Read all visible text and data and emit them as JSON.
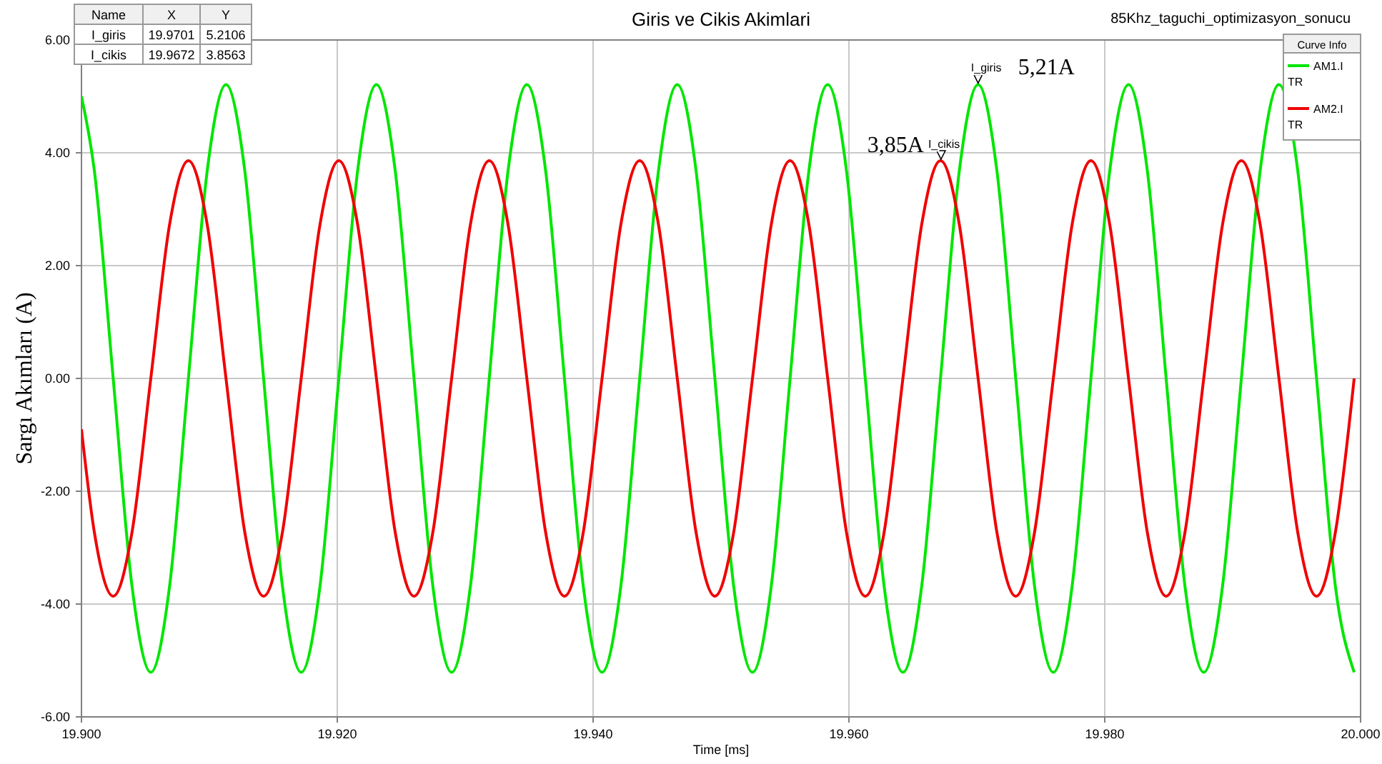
{
  "chart_data": {
    "type": "line",
    "title": "Giris ve Cikis Akimlari",
    "xlabel": "Time [ms]",
    "ylabel": "Sargı Akımları (A)",
    "legend_title": "Curve Info",
    "legend": "top right",
    "grid": true,
    "marker": "none",
    "line_style": "solid",
    "xlim": [
      19.9,
      20.0
    ],
    "xticks": [
      {
        "value": 19.9,
        "label": "19.900"
      },
      {
        "value": 19.92,
        "label": "19.920"
      },
      {
        "value": 19.94,
        "label": "19.940"
      },
      {
        "value": 19.96,
        "label": "19.960"
      },
      {
        "value": 19.98,
        "label": "19.980"
      },
      {
        "value": 20.0,
        "label": "20.000"
      }
    ],
    "ylim": [
      -6,
      6
    ],
    "yticks": [
      {
        "value": -6,
        "label": "-6.00"
      },
      {
        "value": -4,
        "label": "-4.00"
      },
      {
        "value": -2,
        "label": "-2.00"
      },
      {
        "value": 0,
        "label": "0.00"
      },
      {
        "value": 2,
        "label": "2.00"
      },
      {
        "value": 4,
        "label": "4.00"
      },
      {
        "value": 6,
        "label": "6.00"
      }
    ],
    "x": [
      19.9,
      19.90101,
      19.90248,
      19.90395,
      19.90542,
      19.90689,
      19.90836,
      19.90983,
      19.9113,
      19.91277,
      19.91424,
      19.91571,
      19.91718,
      19.91865,
      19.92012,
      19.92159,
      19.92306,
      19.92453,
      19.926,
      19.92747,
      19.92894,
      19.93041,
      19.93188,
      19.93335,
      19.93482,
      19.93629,
      19.93776,
      19.93923,
      19.9407,
      19.94217,
      19.94364,
      19.94511,
      19.94658,
      19.94805,
      19.94952,
      19.95099,
      19.95246,
      19.95393,
      19.9554,
      19.95687,
      19.95834,
      19.95981,
      19.96128,
      19.96275,
      19.96422,
      19.96569,
      19.96716,
      19.96863,
      19.9701,
      19.97157,
      19.97304,
      19.97451,
      19.97598,
      19.97745,
      19.97892,
      19.98039,
      19.98186,
      19.98333,
      19.9848,
      19.98627,
      19.98774,
      19.98921,
      19.99068,
      19.99215,
      19.99362,
      19.99509,
      19.99656,
      19.99803,
      19.9995
    ],
    "series": [
      {
        "name": "AM1.I",
        "color": "#00e600",
        "values": [
          5.0,
          3.68,
          0,
          -3.68,
          -5.21,
          -3.68,
          0,
          3.68,
          5.21,
          3.68,
          0,
          -3.68,
          -5.21,
          -3.68,
          0,
          3.68,
          5.21,
          3.68,
          0,
          -3.68,
          -5.21,
          -3.68,
          0,
          3.68,
          5.21,
          3.68,
          0,
          -3.68,
          -5.21,
          -3.68,
          0,
          3.68,
          5.21,
          3.68,
          0,
          -3.68,
          -5.21,
          -3.68,
          0,
          3.68,
          5.21,
          3.68,
          0,
          -3.68,
          -5.21,
          -3.68,
          0,
          3.68,
          5.21,
          3.68,
          0,
          -3.68,
          -5.21,
          -3.68,
          0,
          3.68,
          5.21,
          3.68,
          0,
          -3.68,
          -5.21,
          -3.68,
          0,
          3.68,
          5.21,
          3.68,
          0,
          -3.68,
          -5.21
        ]
      },
      {
        "name": "AM2.I",
        "color": "#f00000",
        "values": [
          -0.9,
          -2.73,
          -3.86,
          -2.73,
          0,
          2.73,
          3.86,
          2.73,
          0,
          -2.73,
          -3.86,
          -2.73,
          0,
          2.73,
          3.86,
          2.73,
          0,
          -2.73,
          -3.86,
          -2.73,
          0,
          2.73,
          3.86,
          2.73,
          0,
          -2.73,
          -3.86,
          -2.73,
          0,
          2.73,
          3.86,
          2.73,
          0,
          -2.73,
          -3.86,
          -2.73,
          0,
          2.73,
          3.86,
          2.73,
          0,
          -2.73,
          -3.86,
          -2.73,
          0,
          2.73,
          3.86,
          2.73,
          0,
          -2.73,
          -3.86,
          -2.73,
          0,
          2.73,
          3.86,
          2.73,
          0,
          -2.73,
          -3.86,
          -2.73,
          0,
          2.73,
          3.86,
          2.73,
          0,
          -2.73,
          -3.86,
          -2.73,
          0
        ]
      }
    ],
    "annotations": [
      "85Khz_taguchi_optimizasyon_sonucu",
      "Name",
      "X",
      "Y",
      "I_giris",
      "19.9701",
      "5.2106",
      "I_cikis",
      "19.9672",
      "3.8563",
      "TR",
      "TR",
      "I_giris",
      "I_cikis",
      {
        "text": "5,21A",
        "x": 19.9701,
        "y": 5.21
      },
      {
        "text": "3,85A",
        "x": 19.9672,
        "y": 3.86
      }
    ]
  }
}
